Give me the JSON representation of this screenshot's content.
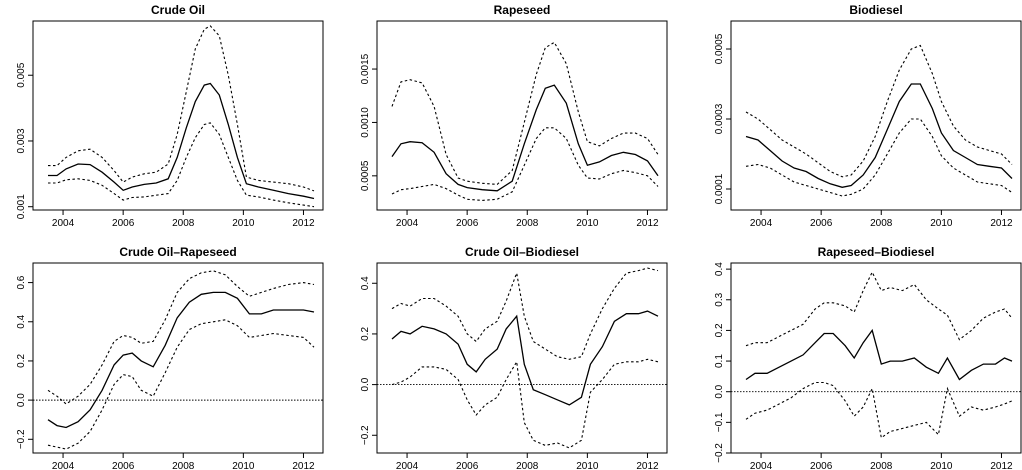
{
  "chart_data": [
    {
      "type": "line",
      "title": "Crude Oil",
      "xlabel": "",
      "ylabel": "",
      "xlim": [
        2003.0,
        2012.65
      ],
      "ylim": [
        0.0009,
        0.00665
      ],
      "xticks": [
        2004,
        2006,
        2008,
        2010,
        2012
      ],
      "xtick_labels": [
        "2004",
        "2006",
        "2008",
        "2010",
        "2012"
      ],
      "yticks": [
        0.001,
        0.003,
        0.005
      ],
      "ytick_labels": [
        "0.001",
        "0.003",
        "0.005"
      ],
      "hline": null,
      "x": [
        2003.5,
        2003.8,
        2004.1,
        2004.5,
        2004.9,
        2005.3,
        2005.7,
        2006.0,
        2006.3,
        2006.7,
        2007.1,
        2007.5,
        2007.8,
        2008.1,
        2008.4,
        2008.7,
        2008.9,
        2009.2,
        2009.5,
        2009.8,
        2010.1,
        2010.5,
        2011.0,
        2011.5,
        2012.0,
        2012.35
      ],
      "series": [
        {
          "style": "solid",
          "values": [
            0.00195,
            0.00195,
            0.00215,
            0.0023,
            0.00228,
            0.00205,
            0.00175,
            0.0015,
            0.0016,
            0.00168,
            0.00172,
            0.00185,
            0.0025,
            0.0034,
            0.0042,
            0.0047,
            0.00475,
            0.0044,
            0.0035,
            0.0025,
            0.0017,
            0.0016,
            0.0015,
            0.0014,
            0.00132,
            0.00125
          ]
        },
        {
          "style": "dashed",
          "values": [
            0.00225,
            0.00225,
            0.0025,
            0.0027,
            0.00275,
            0.0025,
            0.0021,
            0.00175,
            0.0019,
            0.002,
            0.00205,
            0.0023,
            0.0032,
            0.0045,
            0.0058,
            0.0064,
            0.0065,
            0.0062,
            0.005,
            0.0035,
            0.0019,
            0.0018,
            0.00175,
            0.0017,
            0.0016,
            0.00148
          ]
        },
        {
          "style": "dashed",
          "values": [
            0.00172,
            0.00172,
            0.00182,
            0.00185,
            0.0018,
            0.00165,
            0.0014,
            0.0012,
            0.00128,
            0.0013,
            0.00135,
            0.0014,
            0.0018,
            0.0025,
            0.0031,
            0.0035,
            0.00355,
            0.0032,
            0.0025,
            0.0018,
            0.00135,
            0.0013,
            0.0012,
            0.00112,
            0.00105,
            0.001
          ]
        }
      ]
    },
    {
      "type": "line",
      "title": "Rapeseed",
      "xlabel": "",
      "ylabel": "",
      "xlim": [
        2003.0,
        2012.65
      ],
      "ylim": [
        0.00018,
        0.00195
      ],
      "xticks": [
        2004,
        2006,
        2008,
        2010,
        2012
      ],
      "xtick_labels": [
        "2004",
        "2006",
        "2008",
        "2010",
        "2012"
      ],
      "yticks": [
        0.0005,
        0.001,
        0.0015
      ],
      "ytick_labels": [
        "0.0005",
        "0.0010",
        "0.0015"
      ],
      "hline": null,
      "x": [
        2003.5,
        2003.8,
        2004.1,
        2004.5,
        2004.9,
        2005.3,
        2005.7,
        2006.0,
        2006.5,
        2007.0,
        2007.5,
        2007.9,
        2008.3,
        2008.6,
        2008.9,
        2009.3,
        2009.7,
        2010.0,
        2010.4,
        2010.8,
        2011.2,
        2011.6,
        2012.0,
        2012.35
      ],
      "series": [
        {
          "style": "solid",
          "values": [
            0.00068,
            0.0008,
            0.00082,
            0.00081,
            0.00072,
            0.00052,
            0.00042,
            0.00039,
            0.00037,
            0.00036,
            0.00045,
            0.0008,
            0.00112,
            0.00132,
            0.00135,
            0.00118,
            0.0008,
            0.0006,
            0.00063,
            0.00069,
            0.00072,
            0.0007,
            0.00064,
            0.0005
          ]
        },
        {
          "style": "dashed",
          "values": [
            0.00115,
            0.00138,
            0.0014,
            0.00137,
            0.00115,
            0.0007,
            0.00048,
            0.00045,
            0.00043,
            0.00042,
            0.00055,
            0.001,
            0.00145,
            0.0017,
            0.00175,
            0.00155,
            0.0011,
            0.00082,
            0.00078,
            0.00085,
            0.0009,
            0.0009,
            0.00085,
            0.0007
          ]
        },
        {
          "style": "dashed",
          "values": [
            0.00033,
            0.00037,
            0.00038,
            0.0004,
            0.00042,
            0.00038,
            0.00032,
            0.00028,
            0.00027,
            0.00028,
            0.00035,
            0.0006,
            0.00085,
            0.00095,
            0.00095,
            0.00085,
            0.0006,
            0.00048,
            0.00047,
            0.00052,
            0.00055,
            0.00053,
            0.0005,
            0.0004
          ]
        }
      ]
    },
    {
      "type": "line",
      "title": "Biodiesel",
      "xlabel": "",
      "ylabel": "",
      "xlim": [
        2003.0,
        2012.65
      ],
      "ylim": [
        4e-05,
        0.00058
      ],
      "xticks": [
        2004,
        2006,
        2008,
        2010,
        2012
      ],
      "xtick_labels": [
        "2004",
        "2006",
        "2008",
        "2010",
        "2012"
      ],
      "yticks": [
        0.0001,
        0.0003,
        0.0005
      ],
      "ytick_labels": [
        "0.0001",
        "0.0003",
        "0.0005"
      ],
      "hline": null,
      "x": [
        2003.5,
        2003.9,
        2004.3,
        2004.7,
        2005.1,
        2005.5,
        2005.9,
        2006.3,
        2006.7,
        2007.0,
        2007.4,
        2007.8,
        2008.2,
        2008.6,
        2009.0,
        2009.3,
        2009.7,
        2010.0,
        2010.4,
        2010.8,
        2011.2,
        2011.6,
        2012.0,
        2012.35
      ],
      "series": [
        {
          "style": "solid",
          "values": [
            0.00025,
            0.00024,
            0.00021,
            0.00018,
            0.00016,
            0.00015,
            0.00013,
            0.000115,
            0.000105,
            0.00011,
            0.00014,
            0.00019,
            0.00027,
            0.00035,
            0.0004,
            0.0004,
            0.00033,
            0.00026,
            0.00021,
            0.00019,
            0.00017,
            0.000165,
            0.00016,
            0.00013
          ]
        },
        {
          "style": "dashed",
          "values": [
            0.00032,
            0.0003,
            0.00027,
            0.00024,
            0.00022,
            0.0002,
            0.000175,
            0.00015,
            0.000135,
            0.00014,
            0.00018,
            0.00025,
            0.00035,
            0.00044,
            0.0005,
            0.00051,
            0.00043,
            0.00035,
            0.00028,
            0.00024,
            0.00022,
            0.00021,
            0.0002,
            0.00017
          ]
        },
        {
          "style": "dashed",
          "values": [
            0.000165,
            0.00017,
            0.00016,
            0.00014,
            0.00012,
            0.00011,
            0.0001,
            9e-05,
            8e-05,
            8.5e-05,
            0.0001,
            0.00014,
            0.0002,
            0.00026,
            0.0003,
            0.0003,
            0.00025,
            0.000195,
            0.00016,
            0.00014,
            0.00012,
            0.000115,
            0.00011,
            9e-05
          ]
        }
      ]
    },
    {
      "type": "line",
      "title": "Crude Oil–Rapeseed",
      "xlabel": "",
      "ylabel": "",
      "xlim": [
        2003.0,
        2012.65
      ],
      "ylim": [
        -0.27,
        0.7
      ],
      "xticks": [
        2004,
        2006,
        2008,
        2010,
        2012
      ],
      "xtick_labels": [
        "2004",
        "2006",
        "2008",
        "2010",
        "2012"
      ],
      "yticks": [
        -0.2,
        0.0,
        0.2,
        0.4,
        0.6
      ],
      "ytick_labels": [
        "−0.2",
        "0.0",
        "0.2",
        "0.4",
        "0.6"
      ],
      "hline": 0,
      "x": [
        2003.5,
        2003.8,
        2004.1,
        2004.5,
        2004.9,
        2005.3,
        2005.7,
        2006.0,
        2006.3,
        2006.6,
        2007.0,
        2007.4,
        2007.8,
        2008.2,
        2008.6,
        2009.0,
        2009.4,
        2009.8,
        2010.2,
        2010.6,
        2011.0,
        2011.5,
        2012.0,
        2012.35
      ],
      "series": [
        {
          "style": "solid",
          "values": [
            -0.1,
            -0.13,
            -0.14,
            -0.11,
            -0.05,
            0.05,
            0.18,
            0.23,
            0.24,
            0.2,
            0.17,
            0.28,
            0.42,
            0.5,
            0.54,
            0.55,
            0.55,
            0.52,
            0.44,
            0.44,
            0.46,
            0.46,
            0.46,
            0.45
          ]
        },
        {
          "style": "dashed",
          "values": [
            0.05,
            0.02,
            -0.02,
            0.02,
            0.08,
            0.18,
            0.3,
            0.33,
            0.32,
            0.29,
            0.3,
            0.41,
            0.55,
            0.62,
            0.65,
            0.66,
            0.64,
            0.58,
            0.53,
            0.55,
            0.57,
            0.59,
            0.6,
            0.59
          ]
        },
        {
          "style": "dashed",
          "values": [
            -0.23,
            -0.24,
            -0.25,
            -0.22,
            -0.16,
            -0.05,
            0.08,
            0.13,
            0.12,
            0.05,
            0.02,
            0.14,
            0.27,
            0.36,
            0.39,
            0.4,
            0.41,
            0.38,
            0.32,
            0.33,
            0.34,
            0.33,
            0.32,
            0.27
          ]
        }
      ]
    },
    {
      "type": "line",
      "title": "Crude Oil–Biodiesel",
      "xlabel": "",
      "ylabel": "",
      "xlim": [
        2003.0,
        2012.65
      ],
      "ylim": [
        -0.27,
        0.48
      ],
      "xticks": [
        2004,
        2006,
        2008,
        2010,
        2012
      ],
      "xtick_labels": [
        "2004",
        "2006",
        "2008",
        "2010",
        "2012"
      ],
      "yticks": [
        -0.2,
        0.0,
        0.2,
        0.4
      ],
      "ytick_labels": [
        "−0.2",
        "0.0",
        "0.2",
        "0.4"
      ],
      "hline": 0,
      "x": [
        2003.5,
        2003.8,
        2004.1,
        2004.5,
        2004.9,
        2005.3,
        2005.7,
        2006.0,
        2006.3,
        2006.6,
        2007.0,
        2007.3,
        2007.65,
        2007.9,
        2008.2,
        2008.6,
        2009.0,
        2009.4,
        2009.8,
        2010.1,
        2010.5,
        2010.9,
        2011.3,
        2011.7,
        2012.0,
        2012.35
      ],
      "series": [
        {
          "style": "solid",
          "values": [
            0.18,
            0.21,
            0.2,
            0.23,
            0.22,
            0.2,
            0.16,
            0.08,
            0.05,
            0.1,
            0.14,
            0.22,
            0.27,
            0.08,
            -0.02,
            -0.04,
            -0.06,
            -0.08,
            -0.05,
            0.08,
            0.15,
            0.25,
            0.28,
            0.28,
            0.29,
            0.27
          ]
        },
        {
          "style": "dashed",
          "values": [
            0.3,
            0.32,
            0.31,
            0.34,
            0.34,
            0.31,
            0.27,
            0.2,
            0.17,
            0.22,
            0.25,
            0.33,
            0.44,
            0.27,
            0.17,
            0.14,
            0.11,
            0.1,
            0.11,
            0.2,
            0.3,
            0.38,
            0.44,
            0.45,
            0.46,
            0.45
          ]
        },
        {
          "style": "dashed",
          "values": [
            0.0,
            0.01,
            0.03,
            0.07,
            0.07,
            0.06,
            0.02,
            -0.06,
            -0.12,
            -0.08,
            -0.05,
            0.02,
            0.09,
            -0.15,
            -0.22,
            -0.24,
            -0.23,
            -0.25,
            -0.22,
            -0.03,
            0.02,
            0.08,
            0.09,
            0.09,
            0.1,
            0.09
          ]
        }
      ]
    },
    {
      "type": "line",
      "title": "Rapeseed–Biodiesel",
      "xlabel": "",
      "ylabel": "",
      "xlim": [
        2003.0,
        2012.65
      ],
      "ylim": [
        -0.2,
        0.42
      ],
      "xticks": [
        2004,
        2006,
        2008,
        2010,
        2012
      ],
      "xtick_labels": [
        "2004",
        "2006",
        "2008",
        "2010",
        "2012"
      ],
      "yticks": [
        -0.2,
        -0.1,
        0.0,
        0.1,
        0.2,
        0.3,
        0.4
      ],
      "ytick_labels": [
        "−0.2",
        "−0.1",
        "0.0",
        "0.1",
        "0.2",
        "0.3",
        "0.4"
      ],
      "hline": 0,
      "x": [
        2003.5,
        2003.8,
        2004.2,
        2004.6,
        2005.0,
        2005.4,
        2005.8,
        2006.1,
        2006.4,
        2006.8,
        2007.1,
        2007.4,
        2007.7,
        2008.0,
        2008.3,
        2008.7,
        2009.1,
        2009.5,
        2009.9,
        2010.2,
        2010.6,
        2011.0,
        2011.4,
        2011.8,
        2012.1,
        2012.35
      ],
      "series": [
        {
          "style": "solid",
          "values": [
            0.04,
            0.06,
            0.06,
            0.08,
            0.1,
            0.12,
            0.16,
            0.19,
            0.19,
            0.15,
            0.11,
            0.16,
            0.2,
            0.09,
            0.1,
            0.1,
            0.11,
            0.08,
            0.06,
            0.11,
            0.04,
            0.07,
            0.09,
            0.09,
            0.11,
            0.1
          ]
        },
        {
          "style": "dashed",
          "values": [
            0.15,
            0.16,
            0.16,
            0.18,
            0.2,
            0.22,
            0.27,
            0.29,
            0.29,
            0.28,
            0.26,
            0.33,
            0.39,
            0.33,
            0.34,
            0.33,
            0.35,
            0.3,
            0.27,
            0.25,
            0.17,
            0.2,
            0.24,
            0.26,
            0.27,
            0.24
          ]
        },
        {
          "style": "dashed",
          "values": [
            -0.09,
            -0.07,
            -0.06,
            -0.04,
            -0.02,
            0.01,
            0.03,
            0.03,
            0.02,
            -0.03,
            -0.08,
            -0.05,
            0.01,
            -0.15,
            -0.13,
            -0.12,
            -0.11,
            -0.1,
            -0.14,
            0.01,
            -0.08,
            -0.05,
            -0.06,
            -0.05,
            -0.04,
            -0.03
          ]
        }
      ]
    }
  ]
}
